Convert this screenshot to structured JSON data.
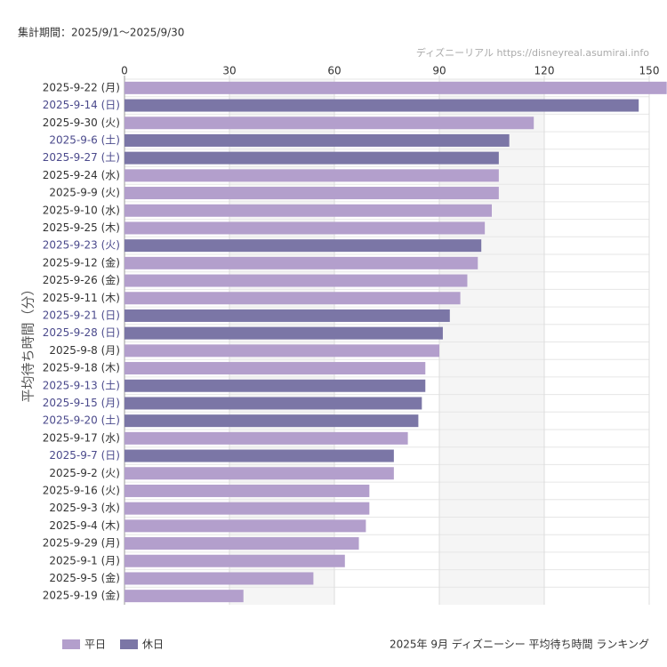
{
  "chart_data": {
    "type": "bar",
    "orientation": "horizontal",
    "subtitle": "集計期間：2025/9/1～2025/9/30",
    "source": "ディズニーリアル https://disneyreal.asumirai.info",
    "y_label": "平均待ち時間（分）",
    "title": "2025年 9月 ディズニーシー 平均待ち時間 ランキング",
    "categories": [
      "2025-9-22 (月)",
      "2025-9-14 (日)",
      "2025-9-30 (火)",
      "2025-9-6 (土)",
      "2025-9-27 (土)",
      "2025-9-24 (水)",
      "2025-9-9 (火)",
      "2025-9-10 (水)",
      "2025-9-25 (木)",
      "2025-9-23 (火)",
      "2025-9-12 (金)",
      "2025-9-26 (金)",
      "2025-9-11 (木)",
      "2025-9-21 (日)",
      "2025-9-28 (日)",
      "2025-9-8 (月)",
      "2025-9-18 (木)",
      "2025-9-13 (土)",
      "2025-9-15 (月)",
      "2025-9-20 (土)",
      "2025-9-17 (水)",
      "2025-9-7 (日)",
      "2025-9-2 (火)",
      "2025-9-16 (火)",
      "2025-9-3 (水)",
      "2025-9-4 (木)",
      "2025-9-29 (月)",
      "2025-9-1 (月)",
      "2025-9-5 (金)",
      "2025-9-19 (金)"
    ],
    "series": [
      {
        "name": "平日",
        "color": "#b39fcc",
        "values": [
          155,
          null,
          117,
          null,
          null,
          107,
          107,
          105,
          103,
          null,
          101,
          98,
          96,
          null,
          null,
          90,
          86,
          null,
          null,
          null,
          81,
          null,
          77,
          70,
          70,
          69,
          67,
          63,
          54,
          34
        ]
      },
      {
        "name": "休日",
        "color": "#7b76a6",
        "values": [
          null,
          147,
          null,
          110,
          107,
          null,
          null,
          null,
          null,
          102,
          null,
          null,
          null,
          93,
          91,
          null,
          null,
          86,
          85,
          84,
          null,
          77,
          null,
          null,
          null,
          null,
          null,
          null,
          null,
          null
        ]
      }
    ],
    "xlim": [
      0,
      150
    ],
    "xticks": [
      0,
      30,
      60,
      90,
      120,
      150
    ],
    "grid": true
  }
}
